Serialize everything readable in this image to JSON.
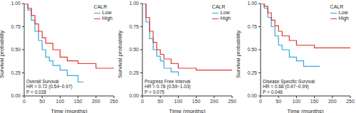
{
  "chart_data": [
    {
      "type": "line",
      "line_style": "step",
      "x_label": "Time (months)",
      "y_label": "Survival probability",
      "legend_title": "CALR",
      "legend": "upper right",
      "annotations": [
        "Overall Survival",
        "HR = 0.72 (0.54−0.97)",
        "P = 0.028"
      ],
      "xlim": [
        0,
        250
      ],
      "xticks": [
        0,
        50,
        100,
        150,
        200,
        250
      ],
      "ylim": [
        0,
        1
      ],
      "yticks": [
        {
          "value": 0,
          "label": "0.00"
        },
        {
          "value": 0.25,
          "label": "0.25"
        },
        {
          "value": 0.5,
          "label": "0.50"
        },
        {
          "value": 0.75,
          "label": "0.75"
        },
        {
          "value": 1,
          "label": "1.00"
        }
      ],
      "series": [
        {
          "name": "Low",
          "color": "#3aa6d9",
          "x": [
            0,
            10,
            20,
            30,
            40,
            50,
            60,
            70,
            80,
            100,
            120,
            150,
            165
          ],
          "values": [
            1,
            0.93,
            0.82,
            0.7,
            0.6,
            0.5,
            0.42,
            0.38,
            0.33,
            0.28,
            0.22,
            0.15,
            0.15
          ]
        },
        {
          "name": "High",
          "color": "#e3342f",
          "x": [
            0,
            10,
            20,
            30,
            40,
            50,
            60,
            80,
            100,
            120,
            150,
            200,
            250
          ],
          "values": [
            1,
            0.95,
            0.87,
            0.78,
            0.7,
            0.63,
            0.57,
            0.5,
            0.42,
            0.38,
            0.35,
            0.3,
            0.3
          ]
        }
      ]
    },
    {
      "type": "line",
      "line_style": "step",
      "x_label": "Time (months)",
      "y_label": "Survival probability",
      "legend_title": "CALR",
      "legend": "upper right",
      "annotations": [
        "Progress Free Interval",
        "HR = 0.78 (0.59−1.03)",
        "P = 0.075"
      ],
      "xlim": [
        0,
        250
      ],
      "xticks": [
        0,
        50,
        100,
        150,
        200,
        250
      ],
      "ylim": [
        0,
        1
      ],
      "yticks": [
        {
          "value": 0,
          "label": "0.00"
        },
        {
          "value": 0.25,
          "label": "0.25"
        },
        {
          "value": 0.5,
          "label": "0.50"
        },
        {
          "value": 0.75,
          "label": "0.75"
        },
        {
          "value": 1,
          "label": "1.00"
        }
      ],
      "series": [
        {
          "name": "Low",
          "color": "#3aa6d9",
          "x": [
            0,
            10,
            20,
            30,
            40,
            50,
            60,
            80,
            100
          ],
          "values": [
            1,
            0.8,
            0.62,
            0.5,
            0.43,
            0.38,
            0.3,
            0.26,
            0.22
          ]
        },
        {
          "name": "High",
          "color": "#e3342f",
          "x": [
            0,
            10,
            20,
            30,
            40,
            50,
            60,
            80,
            100,
            150,
            200,
            250
          ],
          "values": [
            1,
            0.85,
            0.7,
            0.58,
            0.5,
            0.45,
            0.4,
            0.35,
            0.3,
            0.28,
            0.28,
            0.28
          ]
        }
      ]
    },
    {
      "type": "line",
      "line_style": "step",
      "x_label": "Time (months)",
      "y_label": "Survival probability",
      "legend_title": "CALR",
      "legend": "upper right",
      "annotations": [
        "Disease Specific Survival",
        "HR = 0.68 (0.47−0.99)",
        "P = 0.046"
      ],
      "xlim": [
        0,
        250
      ],
      "xticks": [
        0,
        50,
        100,
        150,
        200,
        250
      ],
      "ylim": [
        0,
        1
      ],
      "yticks": [
        {
          "value": 0,
          "label": "0.00"
        },
        {
          "value": 0.25,
          "label": "0.25"
        },
        {
          "value": 0.5,
          "label": "0.50"
        },
        {
          "value": 0.75,
          "label": "0.75"
        },
        {
          "value": 1,
          "label": "1.00"
        }
      ],
      "series": [
        {
          "name": "Low",
          "color": "#3aa6d9",
          "x": [
            0,
            10,
            20,
            30,
            40,
            50,
            60,
            80,
            100,
            120,
            165
          ],
          "values": [
            1,
            0.95,
            0.85,
            0.75,
            0.65,
            0.55,
            0.5,
            0.42,
            0.38,
            0.32,
            0.32
          ]
        },
        {
          "name": "High",
          "color": "#e3342f",
          "x": [
            0,
            10,
            20,
            30,
            40,
            50,
            60,
            80,
            100,
            150,
            200,
            250
          ],
          "values": [
            1,
            0.97,
            0.9,
            0.82,
            0.76,
            0.7,
            0.65,
            0.6,
            0.55,
            0.52,
            0.52,
            0.52
          ]
        }
      ]
    }
  ]
}
